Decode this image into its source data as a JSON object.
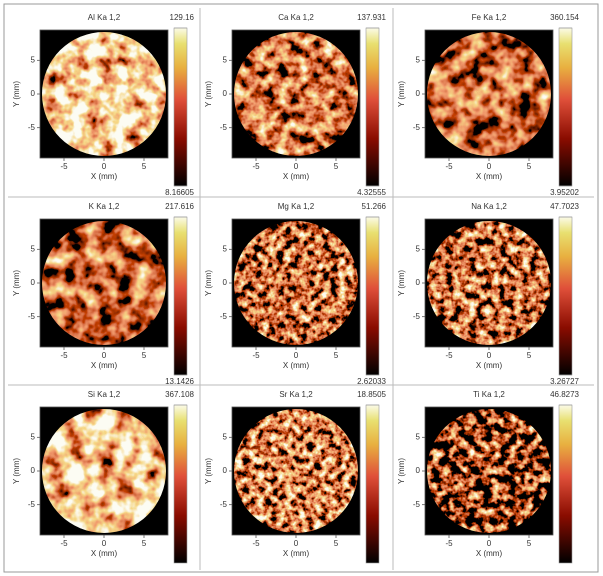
{
  "chart_data": [
    {
      "type": "image",
      "title": "Al Ka 1,2",
      "xlabel": "X (mm)",
      "ylabel": "Y (mm)",
      "xlim": [
        -8,
        8
      ],
      "ylim": [
        -9.5,
        9.5
      ],
      "xticks": [
        -5,
        0,
        5
      ],
      "yticks": [
        -5,
        0,
        5
      ],
      "cticks": [
        8.16605,
        129.16
      ]
    },
    {
      "type": "image",
      "title": "Ca Ka 1,2",
      "xlabel": "X (mm)",
      "ylabel": "Y (mm)",
      "xlim": [
        -8,
        8
      ],
      "ylim": [
        -9.5,
        9.5
      ],
      "xticks": [
        -5,
        0,
        5
      ],
      "yticks": [
        -5,
        0,
        5
      ],
      "cticks": [
        4.32555,
        137.931
      ]
    },
    {
      "type": "image",
      "title": "Fe Ka 1,2",
      "xlabel": "X (mm)",
      "ylabel": "Y (mm)",
      "xlim": [
        -8,
        8
      ],
      "ylim": [
        -9.5,
        9.5
      ],
      "xticks": [
        -5,
        0,
        5
      ],
      "yticks": [
        -5,
        0,
        5
      ],
      "cticks": [
        3.95202,
        360.154
      ]
    },
    {
      "type": "image",
      "title": "K Ka 1,2",
      "xlabel": "X (mm)",
      "ylabel": "Y (mm)",
      "xlim": [
        -8,
        8
      ],
      "ylim": [
        -9.5,
        9.5
      ],
      "xticks": [
        -5,
        0,
        5
      ],
      "yticks": [
        -5,
        0,
        5
      ],
      "cticks": [
        13.1426,
        217.616
      ]
    },
    {
      "type": "image",
      "title": "Mg Ka 1,2",
      "xlabel": "X (mm)",
      "ylabel": "Y (mm)",
      "xlim": [
        -8,
        8
      ],
      "ylim": [
        -9.5,
        9.5
      ],
      "xticks": [
        -5,
        0,
        5
      ],
      "yticks": [
        -5,
        0,
        5
      ],
      "cticks": [
        2.62033,
        51.266
      ]
    },
    {
      "type": "image",
      "title": "Na Ka 1,2",
      "xlabel": "X (mm)",
      "ylabel": "Y (mm)",
      "xlim": [
        -8,
        8
      ],
      "ylim": [
        -9.5,
        9.5
      ],
      "xticks": [
        -5,
        0,
        5
      ],
      "yticks": [
        -5,
        0,
        5
      ],
      "cticks": [
        3.26727,
        47.7023
      ]
    },
    {
      "type": "image",
      "title": "Si Ka 1,2",
      "xlabel": "X (mm)",
      "ylabel": "Y (mm)",
      "xlim": [
        -8,
        8
      ],
      "ylim": [
        -9.5,
        9.5
      ],
      "xticks": [
        -5,
        0,
        5
      ],
      "yticks": [
        -5,
        0,
        5
      ],
      "cticks": [
        367.108
      ]
    },
    {
      "type": "image",
      "title": "Sr Ka 1,2",
      "xlabel": "X (mm)",
      "ylabel": "Y (mm)",
      "xlim": [
        -8,
        8
      ],
      "ylim": [
        -9.5,
        9.5
      ],
      "xticks": [
        -5,
        0,
        5
      ],
      "yticks": [
        -5,
        0,
        5
      ],
      "cticks": [
        18.8505
      ]
    },
    {
      "type": "image",
      "title": "Ti Ka 1,2",
      "xlabel": "X (mm)",
      "ylabel": "Y (mm)",
      "xlim": [
        -8,
        8
      ],
      "ylim": [
        -9.5,
        9.5
      ],
      "xticks": [
        -5,
        0,
        5
      ],
      "yticks": [
        -5,
        0,
        5
      ],
      "cticks": [
        46.8273
      ]
    }
  ]
}
